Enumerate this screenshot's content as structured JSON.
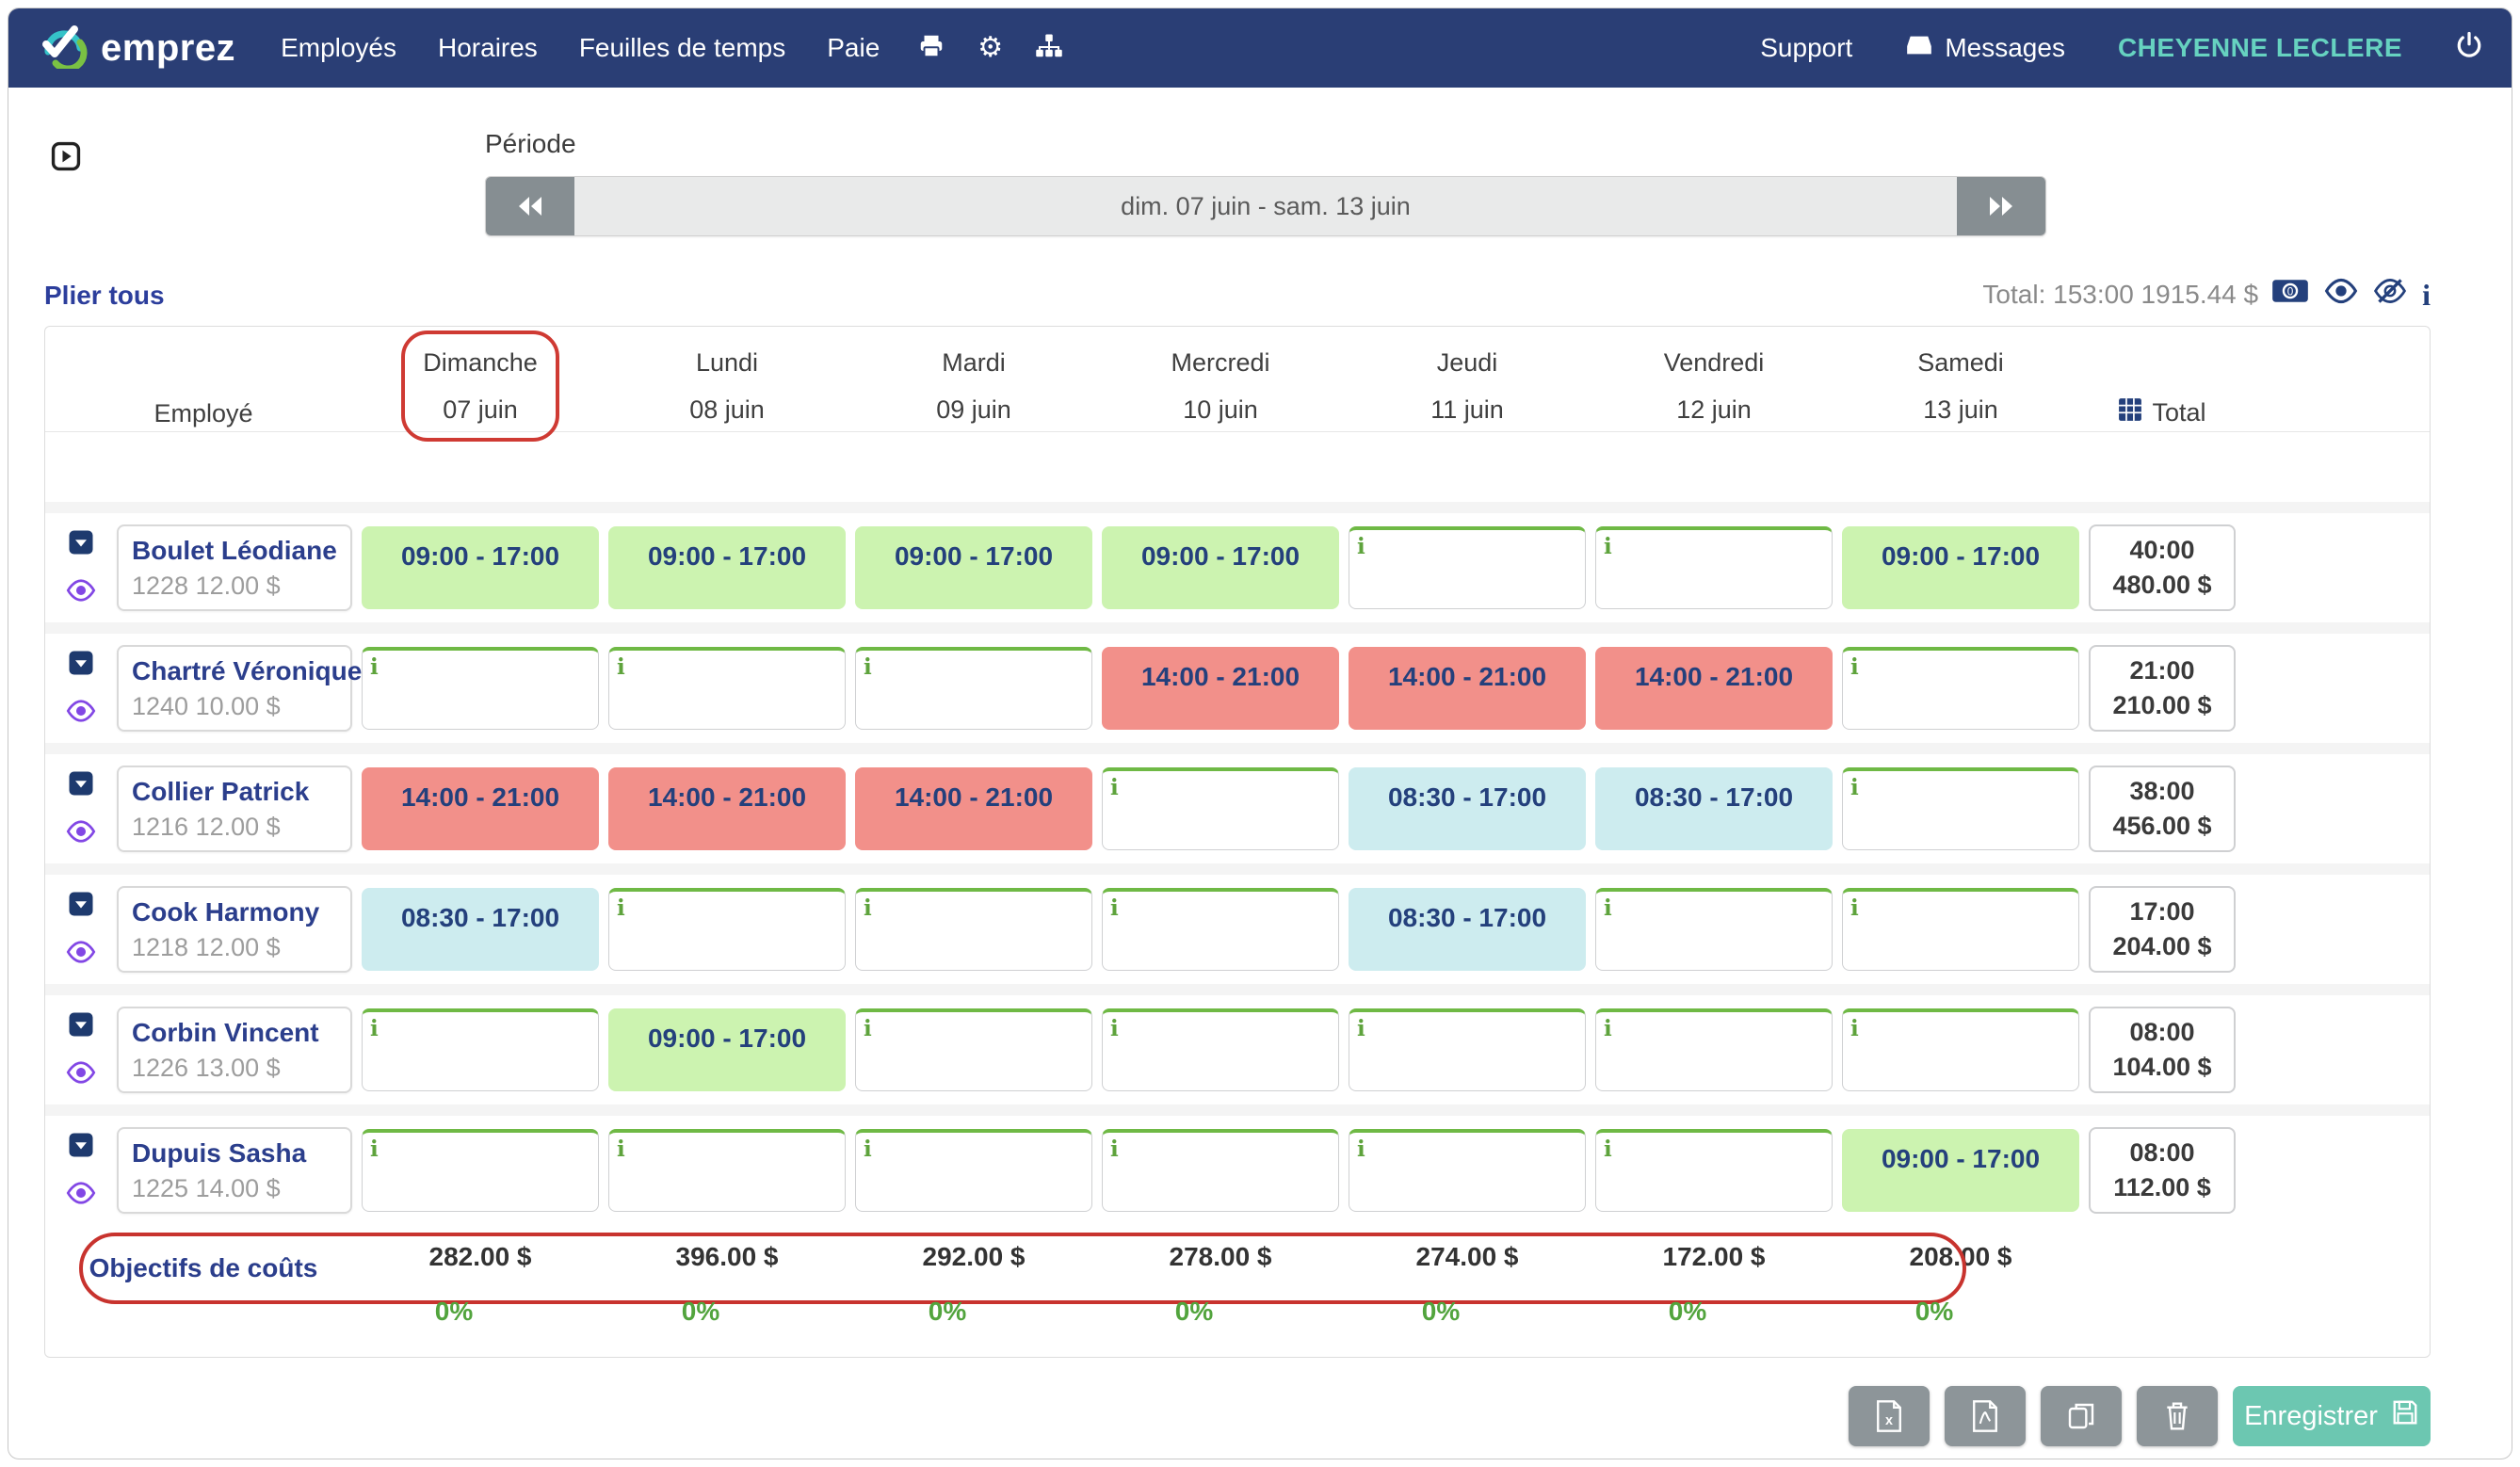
{
  "navbar": {
    "brand": "emprez",
    "menu": [
      {
        "label": "Employés"
      },
      {
        "label": "Horaires"
      },
      {
        "label": "Feuilles de temps"
      },
      {
        "label": "Paie"
      }
    ],
    "gears_glyph": "⚙",
    "right": {
      "support": "Support",
      "messages": "Messages",
      "user": "CHEYENNE LECLERE"
    }
  },
  "period": {
    "label": "Période",
    "value": "dim. 07 juin - sam. 13 juin"
  },
  "toolbar": {
    "fold_all": "Plier tous",
    "total": "Total: 153:00 1915.44 $",
    "info_glyph": "i"
  },
  "schedule": {
    "employee_header": "Employé",
    "total_header": "Total",
    "days": [
      {
        "name": "Dimanche",
        "date": "07 juin",
        "annotated": true
      },
      {
        "name": "Lundi",
        "date": "08 juin",
        "annotated": false
      },
      {
        "name": "Mardi",
        "date": "09 juin",
        "annotated": false
      },
      {
        "name": "Mercredi",
        "date": "10 juin",
        "annotated": false
      },
      {
        "name": "Jeudi",
        "date": "11 juin",
        "annotated": false
      },
      {
        "name": "Vendredi",
        "date": "12 juin",
        "annotated": false
      },
      {
        "name": "Samedi",
        "date": "13 juin",
        "annotated": false
      }
    ],
    "empty_cell_glyph": "i",
    "rows": [
      {
        "name": "Boulet Léodiane",
        "meta": "1228 12.00 $",
        "cells": [
          {
            "type": "green",
            "text": "09:00 - 17:00"
          },
          {
            "type": "green",
            "text": "09:00 - 17:00"
          },
          {
            "type": "green",
            "text": "09:00 - 17:00"
          },
          {
            "type": "green",
            "text": "09:00 - 17:00"
          },
          {
            "type": "empty",
            "text": ""
          },
          {
            "type": "empty",
            "text": ""
          },
          {
            "type": "green",
            "text": "09:00 - 17:00"
          }
        ],
        "total_hours": "40:00",
        "total_amount": "480.00 $"
      },
      {
        "name": "Chartré Véronique",
        "meta": "1240 10.00 $",
        "cells": [
          {
            "type": "empty",
            "text": ""
          },
          {
            "type": "empty",
            "text": ""
          },
          {
            "type": "empty",
            "text": ""
          },
          {
            "type": "red",
            "text": "14:00 - 21:00"
          },
          {
            "type": "red",
            "text": "14:00 - 21:00"
          },
          {
            "type": "red",
            "text": "14:00 - 21:00"
          },
          {
            "type": "empty",
            "text": ""
          }
        ],
        "total_hours": "21:00",
        "total_amount": "210.00 $"
      },
      {
        "name": "Collier Patrick",
        "meta": "1216 12.00 $",
        "cells": [
          {
            "type": "red",
            "text": "14:00 - 21:00"
          },
          {
            "type": "red",
            "text": "14:00 - 21:00"
          },
          {
            "type": "red",
            "text": "14:00 - 21:00"
          },
          {
            "type": "empty",
            "text": ""
          },
          {
            "type": "cyan",
            "text": "08:30 - 17:00"
          },
          {
            "type": "cyan",
            "text": "08:30 - 17:00"
          },
          {
            "type": "empty",
            "text": ""
          }
        ],
        "total_hours": "38:00",
        "total_amount": "456.00 $"
      },
      {
        "name": "Cook Harmony",
        "meta": "1218 12.00 $",
        "cells": [
          {
            "type": "cyan",
            "text": "08:30 - 17:00"
          },
          {
            "type": "empty",
            "text": ""
          },
          {
            "type": "empty",
            "text": ""
          },
          {
            "type": "empty",
            "text": ""
          },
          {
            "type": "cyan",
            "text": "08:30 - 17:00"
          },
          {
            "type": "empty",
            "text": ""
          },
          {
            "type": "empty",
            "text": ""
          }
        ],
        "total_hours": "17:00",
        "total_amount": "204.00 $"
      },
      {
        "name": "Corbin Vincent",
        "meta": "1226 13.00 $",
        "cells": [
          {
            "type": "empty",
            "text": ""
          },
          {
            "type": "green",
            "text": "09:00 - 17:00"
          },
          {
            "type": "empty",
            "text": ""
          },
          {
            "type": "empty",
            "text": ""
          },
          {
            "type": "empty",
            "text": ""
          },
          {
            "type": "empty",
            "text": ""
          },
          {
            "type": "empty",
            "text": ""
          }
        ],
        "total_hours": "08:00",
        "total_amount": "104.00 $"
      },
      {
        "name": "Dupuis Sasha",
        "meta": "1225 14.00 $",
        "cells": [
          {
            "type": "empty",
            "text": ""
          },
          {
            "type": "empty",
            "text": ""
          },
          {
            "type": "empty",
            "text": ""
          },
          {
            "type": "empty",
            "text": ""
          },
          {
            "type": "empty",
            "text": ""
          },
          {
            "type": "empty",
            "text": ""
          },
          {
            "type": "green",
            "text": "09:00 - 17:00"
          }
        ],
        "total_hours": "08:00",
        "total_amount": "112.00 $"
      }
    ],
    "objectives": {
      "label": "Objectifs de coûts",
      "values": [
        "282.00 $",
        "396.00 $",
        "292.00 $",
        "278.00 $",
        "274.00 $",
        "172.00 $",
        "208.00 $"
      ],
      "percents": [
        "0%",
        "0%",
        "0%",
        "0%",
        "0%",
        "0%",
        "0%"
      ]
    }
  },
  "footer": {
    "save_label": "Enregistrer"
  },
  "colors": {
    "navbar_bg": "#2a3e75",
    "user_accent": "#66d2c0",
    "shift_green": "#ccf3b0",
    "shift_red": "#f2908a",
    "shift_cyan": "#cdecef",
    "empty_cell_accent": "#6fb945",
    "percent_green": "#52a43d",
    "annotation_red": "#cf3a33",
    "link_blue": "#2c3e9c",
    "employee_name": "#2b3e8c",
    "save_teal": "#6cc7b1",
    "gray_button": "#8d9599"
  }
}
